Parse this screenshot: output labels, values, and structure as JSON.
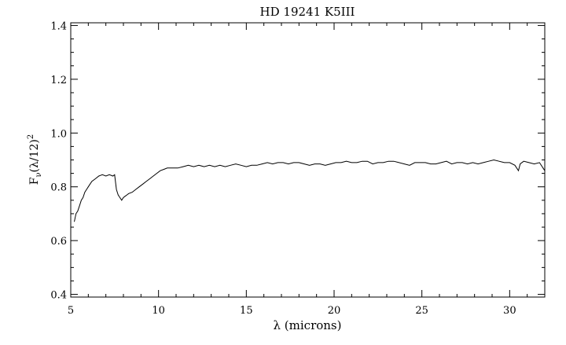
{
  "chart_data": {
    "type": "line",
    "title": "HD 19241 K5III",
    "xlabel": "λ (microns)",
    "ylabel_parts": {
      "main": "F",
      "sub": "ν",
      "mid": "(λ/12)",
      "sup": "2"
    },
    "xlim": [
      5,
      32
    ],
    "ylim": [
      0.39,
      1.41
    ],
    "x_ticks": [
      5,
      10,
      15,
      20,
      25,
      30
    ],
    "x_tick_labels": [
      "5",
      "10",
      "15",
      "20",
      "25",
      "30"
    ],
    "y_ticks": [
      0.4,
      0.6,
      0.8,
      1.0,
      1.2,
      1.4
    ],
    "y_tick_labels": [
      "0.4",
      "0.6",
      "0.8",
      "1.0",
      "1.2",
      "1.4"
    ],
    "grid": false,
    "series": [
      {
        "x": [
          5.2,
          5.3,
          5.4,
          5.5,
          5.6,
          5.7,
          5.8,
          5.9,
          6.0,
          6.2,
          6.4,
          6.6,
          6.8,
          7.0,
          7.2,
          7.4,
          7.5,
          7.6,
          7.7,
          7.8,
          7.9,
          8.0,
          8.1,
          8.2,
          8.3,
          8.5,
          8.7,
          8.9,
          9.1,
          9.3,
          9.5,
          9.7,
          9.9,
          10.1,
          10.3,
          10.5,
          10.8,
          11.1,
          11.4,
          11.7,
          12.0,
          12.3,
          12.6,
          12.9,
          13.2,
          13.5,
          13.8,
          14.1,
          14.4,
          14.7,
          15.0,
          15.3,
          15.6,
          15.9,
          16.2,
          16.5,
          16.8,
          17.1,
          17.4,
          17.7,
          18.0,
          18.3,
          18.6,
          18.9,
          19.2,
          19.5,
          19.8,
          20.1,
          20.4,
          20.7,
          21.0,
          21.3,
          21.6,
          21.9,
          22.2,
          22.5,
          22.8,
          23.1,
          23.4,
          23.7,
          24.0,
          24.3,
          24.6,
          24.9,
          25.2,
          25.5,
          25.8,
          26.1,
          26.4,
          26.7,
          27.0,
          27.3,
          27.6,
          27.9,
          28.2,
          28.5,
          28.8,
          29.1,
          29.4,
          29.7,
          30.0,
          30.3,
          30.5,
          30.6,
          30.8,
          31.1,
          31.4,
          31.7,
          32.0
        ],
        "y": [
          0.67,
          0.7,
          0.71,
          0.73,
          0.75,
          0.76,
          0.78,
          0.79,
          0.8,
          0.82,
          0.83,
          0.84,
          0.845,
          0.84,
          0.845,
          0.84,
          0.845,
          0.79,
          0.77,
          0.76,
          0.75,
          0.76,
          0.765,
          0.77,
          0.775,
          0.78,
          0.79,
          0.8,
          0.81,
          0.82,
          0.83,
          0.84,
          0.85,
          0.86,
          0.865,
          0.87,
          0.87,
          0.87,
          0.875,
          0.88,
          0.875,
          0.88,
          0.875,
          0.88,
          0.875,
          0.88,
          0.875,
          0.88,
          0.885,
          0.88,
          0.875,
          0.88,
          0.88,
          0.885,
          0.89,
          0.885,
          0.89,
          0.89,
          0.885,
          0.89,
          0.89,
          0.885,
          0.88,
          0.885,
          0.885,
          0.88,
          0.885,
          0.89,
          0.89,
          0.895,
          0.89,
          0.89,
          0.895,
          0.895,
          0.885,
          0.89,
          0.89,
          0.895,
          0.895,
          0.89,
          0.885,
          0.88,
          0.89,
          0.89,
          0.89,
          0.885,
          0.885,
          0.89,
          0.895,
          0.885,
          0.89,
          0.89,
          0.885,
          0.89,
          0.885,
          0.89,
          0.895,
          0.9,
          0.895,
          0.89,
          0.89,
          0.88,
          0.86,
          0.885,
          0.895,
          0.89,
          0.885,
          0.89,
          0.86
        ]
      }
    ]
  }
}
